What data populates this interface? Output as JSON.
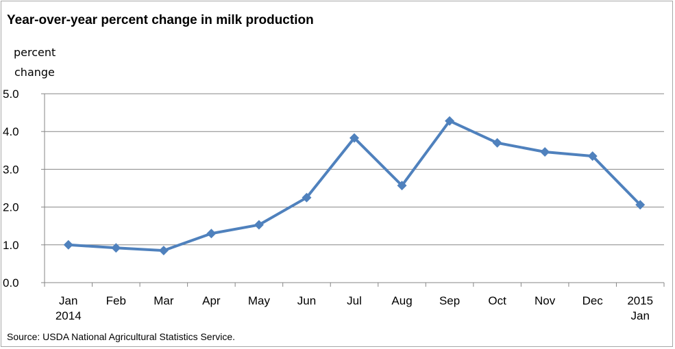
{
  "chart_data": {
    "type": "line",
    "title": "Year-over-year percent change in milk production",
    "ylabel": [
      "percent",
      "change"
    ],
    "xlabel": "",
    "categories": [
      [
        "Jan",
        "2014"
      ],
      [
        "Feb"
      ],
      [
        "Mar"
      ],
      [
        "Apr"
      ],
      [
        "May"
      ],
      [
        "Jun"
      ],
      [
        "Jul"
      ],
      [
        "Aug"
      ],
      [
        "Sep"
      ],
      [
        "Oct"
      ],
      [
        "Nov"
      ],
      [
        "Dec"
      ],
      [
        "2015",
        "Jan"
      ]
    ],
    "series": [
      {
        "values": [
          1.0,
          0.92,
          0.85,
          1.3,
          1.53,
          2.25,
          3.83,
          2.57,
          4.28,
          3.7,
          3.46,
          3.35,
          2.06
        ]
      }
    ],
    "ylim": [
      0,
      5
    ],
    "yticks": [
      "0.0",
      "1.0",
      "2.0",
      "3.0",
      "4.0",
      "5.0"
    ],
    "grid": true,
    "legend": "none",
    "line_color": "#4f81bd",
    "grid_color": "#868686",
    "source": "Source: USDA National Agricultural Statistics Service."
  }
}
